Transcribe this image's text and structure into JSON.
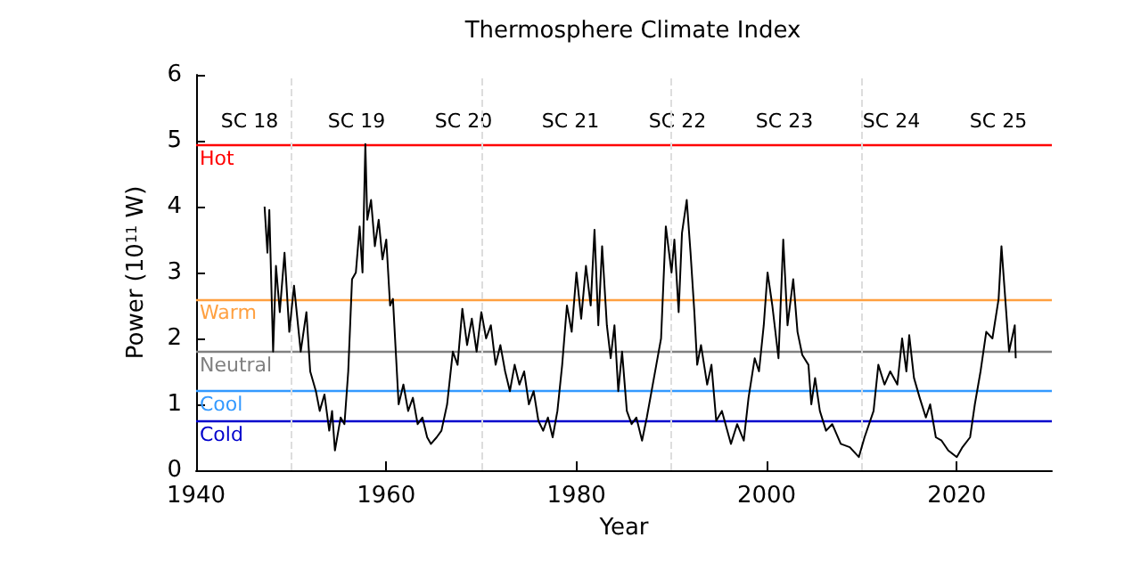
{
  "chart_data": {
    "type": "line",
    "title": "Thermosphere Climate Index",
    "xlabel": "Year",
    "ylabel": "Power (10$^{11}$ W)",
    "xlim": [
      1940,
      2030
    ],
    "xticks": [
      1940,
      1960,
      1980,
      2000,
      2020
    ],
    "ylim": [
      0,
      6
    ],
    "yticks": [
      0,
      1,
      2,
      3,
      4,
      5,
      6
    ],
    "grid": false,
    "marker": "none",
    "line_style": "solid",
    "x": [
      1947.2,
      1947.5,
      1947.7,
      1948.1,
      1948.4,
      1948.8,
      1949.3,
      1949.8,
      1950.3,
      1951,
      1951.6,
      1952,
      1952.6,
      1953,
      1953.5,
      1954,
      1954.3,
      1954.6,
      1955.2,
      1955.6,
      1956,
      1956.4,
      1956.8,
      1957.2,
      1957.5,
      1957.8,
      1958,
      1958.4,
      1958.8,
      1959.2,
      1959.6,
      1960,
      1960.4,
      1960.7,
      1961,
      1961.3,
      1961.8,
      1962.3,
      1962.8,
      1963.3,
      1963.8,
      1964.3,
      1964.7,
      1965.3,
      1965.8,
      1966.4,
      1967,
      1967.5,
      1968,
      1968.5,
      1969,
      1969.5,
      1970,
      1970.5,
      1971,
      1971.5,
      1972,
      1972.5,
      1973,
      1973.5,
      1974,
      1974.5,
      1975,
      1975.5,
      1976,
      1976.5,
      1977,
      1977.5,
      1978,
      1978.5,
      1979,
      1979.5,
      1980,
      1980.5,
      1981,
      1981.5,
      1981.9,
      1982.3,
      1982.7,
      1983.2,
      1983.6,
      1984,
      1984.4,
      1984.8,
      1985.3,
      1985.8,
      1986.3,
      1986.9,
      1987.4,
      1988.4,
      1988.9,
      1989.4,
      1990,
      1990.3,
      1990.75,
      1991.1,
      1991.6,
      1992,
      1992.4,
      1992.7,
      1993.1,
      1993.75,
      1994.2,
      1994.7,
      1995.3,
      1996.25,
      1996.9,
      1997.6,
      1998.1,
      1998.75,
      1999.2,
      1999.7,
      2000.1,
      2000.6,
      2001.25,
      2001.75,
      2002.2,
      2002.8,
      2003.25,
      2003.75,
      2004.4,
      2004.7,
      2005.1,
      2005.6,
      2006.25,
      2006.9,
      2007.8,
      2008.75,
      2009.7,
      2010.3,
      2011.25,
      2011.75,
      2012.4,
      2013,
      2013.75,
      2014.25,
      2014.7,
      2015,
      2015.5,
      2016.1,
      2016.75,
      2017.2,
      2017.8,
      2018.4,
      2019.1,
      2020,
      2020.6,
      2021.4,
      2021.9,
      2022.5,
      2023.1,
      2023.75,
      2024.4,
      2024.7,
      2025,
      2025.5,
      2026.1,
      2026.2
    ],
    "values": [
      4.0,
      3.3,
      3.95,
      1.8,
      3.1,
      2.4,
      3.3,
      2.1,
      2.8,
      1.8,
      2.4,
      1.5,
      1.2,
      0.9,
      1.15,
      0.6,
      0.9,
      0.3,
      0.8,
      0.7,
      1.5,
      2.9,
      3.0,
      3.7,
      3.0,
      4.95,
      3.8,
      4.1,
      3.4,
      3.8,
      3.2,
      3.5,
      2.5,
      2.6,
      1.8,
      1.0,
      1.3,
      0.9,
      1.1,
      0.7,
      0.8,
      0.5,
      0.4,
      0.5,
      0.6,
      1.0,
      1.8,
      1.6,
      2.45,
      1.9,
      2.3,
      1.8,
      2.4,
      2.0,
      2.2,
      1.6,
      1.9,
      1.5,
      1.2,
      1.6,
      1.3,
      1.5,
      1.0,
      1.2,
      0.75,
      0.6,
      0.8,
      0.5,
      0.9,
      1.6,
      2.5,
      2.1,
      3.0,
      2.3,
      3.1,
      2.5,
      3.65,
      2.2,
      3.4,
      2.2,
      1.7,
      2.2,
      1.2,
      1.8,
      0.9,
      0.7,
      0.8,
      0.45,
      0.8,
      1.6,
      2.0,
      3.7,
      3.0,
      3.5,
      2.4,
      3.6,
      4.1,
      3.3,
      2.4,
      1.6,
      1.9,
      1.3,
      1.6,
      0.75,
      0.9,
      0.4,
      0.7,
      0.45,
      1.1,
      1.7,
      1.5,
      2.2,
      3.0,
      2.5,
      1.7,
      3.5,
      2.2,
      2.9,
      2.1,
      1.75,
      1.6,
      1.0,
      1.4,
      0.9,
      0.6,
      0.7,
      0.4,
      0.35,
      0.2,
      0.5,
      0.9,
      1.6,
      1.3,
      1.5,
      1.3,
      2.0,
      1.5,
      2.05,
      1.4,
      1.1,
      0.8,
      1.0,
      0.5,
      0.45,
      0.3,
      0.2,
      0.35,
      0.5,
      1.0,
      1.5,
      2.1,
      2.0,
      2.6,
      3.4,
      2.8,
      1.8,
      2.2,
      1.7
    ],
    "color": "#000000",
    "ref_lines": [
      {
        "axis": "y",
        "value": 4.93,
        "label": "Hot",
        "color": "#ff0000"
      },
      {
        "axis": "y",
        "value": 2.6,
        "label": "Warm",
        "color": "#ffa040"
      },
      {
        "axis": "y",
        "value": 1.8,
        "label": "Neutral",
        "color": "#808080"
      },
      {
        "axis": "y",
        "value": 1.2,
        "label": "Cool",
        "color": "#3399ff"
      },
      {
        "axis": "y",
        "value": 0.75,
        "label": "Cold",
        "color": "#0000cc"
      },
      {
        "axis": "x",
        "value": 1950,
        "color": "#dddddd",
        "line_style": "dashed"
      },
      {
        "axis": "x",
        "value": 1970,
        "color": "#dddddd",
        "line_style": "dashed"
      },
      {
        "axis": "x",
        "value": 1990,
        "color": "#dddddd",
        "line_style": "dashed"
      },
      {
        "axis": "x",
        "value": 2010,
        "color": "#dddddd",
        "line_style": "dashed"
      }
    ],
    "annotations": [
      "SC 18",
      "SC 19",
      "SC 20",
      "SC 21",
      "SC 22",
      "SC 23",
      "SC 24",
      "SC 25"
    ]
  }
}
